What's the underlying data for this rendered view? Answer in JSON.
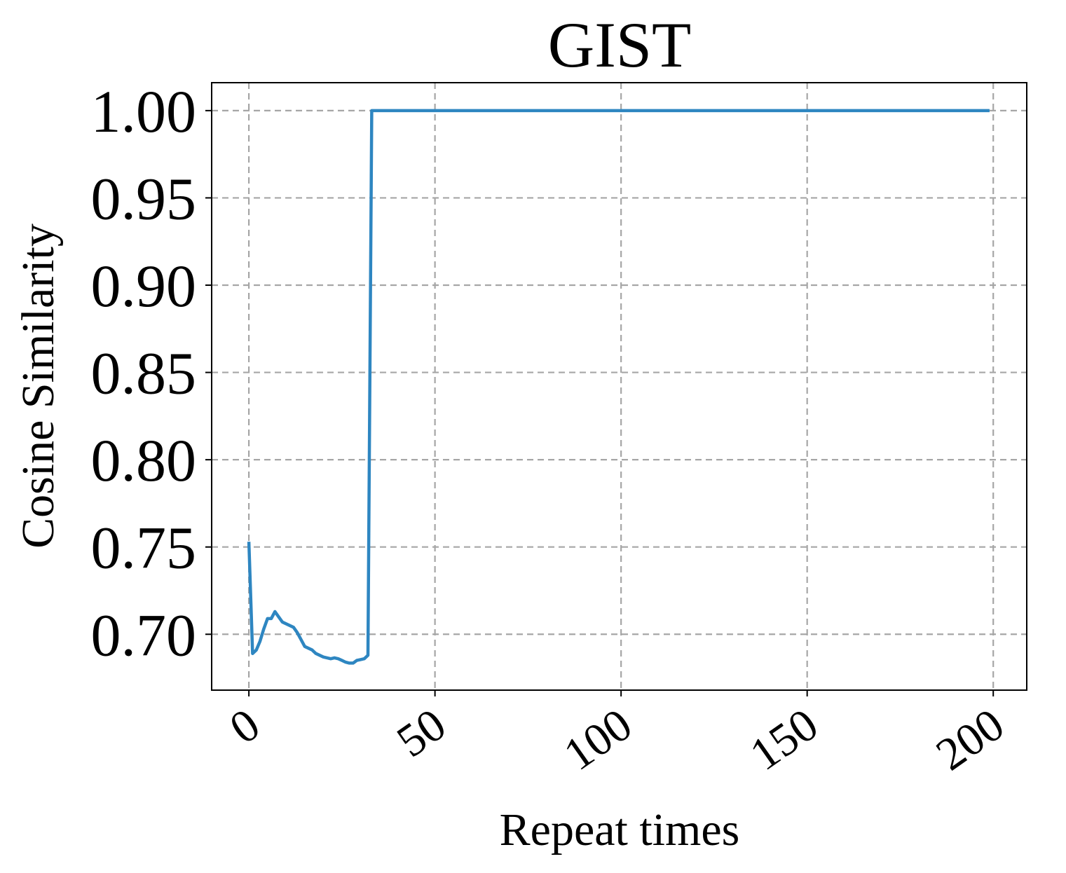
{
  "chart_data": {
    "type": "line",
    "title": "GIST",
    "xlabel": "Repeat times",
    "ylabel": "Cosine Similarity",
    "xlim": [
      -10,
      209
    ],
    "ylim": [
      0.668,
      1.016
    ],
    "x_ticks": [
      0,
      50,
      100,
      150,
      200
    ],
    "x_tick_labels": [
      "0",
      "50",
      "100",
      "150",
      "200"
    ],
    "y_ticks": [
      0.7,
      0.75,
      0.8,
      0.85,
      0.9,
      0.95,
      1.0
    ],
    "y_tick_labels": [
      "0.70",
      "0.75",
      "0.80",
      "0.85",
      "0.90",
      "0.95",
      "1.00"
    ],
    "grid": true,
    "colors": {
      "series": "#2e86c1",
      "grid": "#a6a6a6",
      "frame": "#000000"
    },
    "series": [
      {
        "x": [
          0,
          1,
          2,
          3,
          4,
          5,
          6,
          7,
          8,
          9,
          10,
          11,
          12,
          13,
          14,
          15,
          16,
          17,
          18,
          19,
          20,
          21,
          22,
          23,
          24,
          25,
          26,
          27,
          28,
          29,
          30,
          31,
          32,
          33,
          199
        ],
        "y": [
          0.753,
          0.689,
          0.691,
          0.696,
          0.703,
          0.709,
          0.709,
          0.713,
          0.71,
          0.707,
          0.706,
          0.705,
          0.704,
          0.701,
          0.697,
          0.693,
          0.692,
          0.691,
          0.689,
          0.688,
          0.687,
          0.6865,
          0.686,
          0.6865,
          0.686,
          0.685,
          0.684,
          0.6835,
          0.6835,
          0.685,
          0.6855,
          0.686,
          0.688,
          1.0,
          1.0
        ]
      }
    ]
  }
}
